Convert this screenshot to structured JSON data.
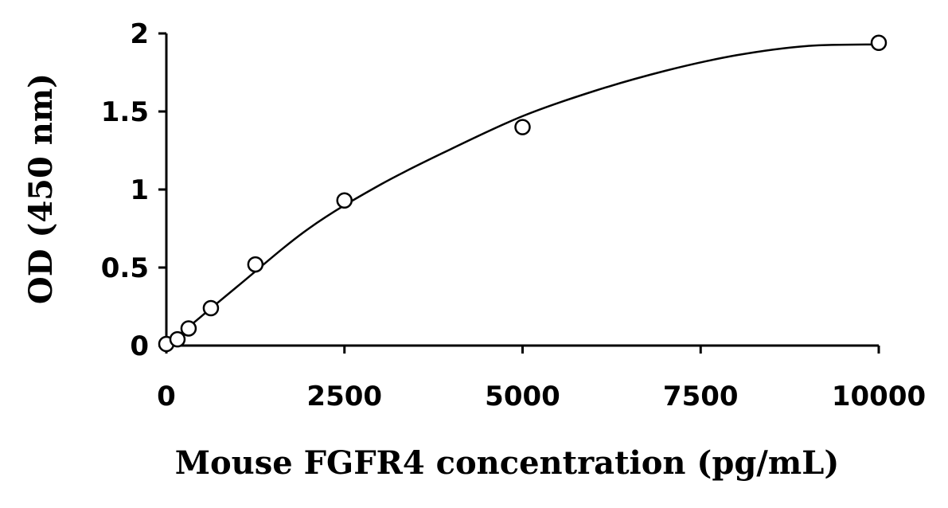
{
  "chart_data": {
    "type": "scatter",
    "title": "",
    "xlabel": "Mouse FGFR4 concentration (pg/mL)",
    "ylabel": "OD (450 nm)",
    "xlim": [
      0,
      10000
    ],
    "ylim": [
      0,
      2
    ],
    "xticks": [
      0,
      2500,
      5000,
      7500,
      10000
    ],
    "yticks": [
      0,
      0.5,
      1,
      1.5,
      2
    ],
    "xtick_labels": [
      "0",
      "2500",
      "5000",
      "7500",
      "10000"
    ],
    "ytick_labels": [
      "0",
      "0.5",
      "1",
      "1.5",
      "2"
    ],
    "grid": false,
    "legend": "none",
    "series": [
      {
        "type": "scatter",
        "marker": "open-circle",
        "x": [
          0,
          156,
          312,
          625,
          1250,
          2500,
          5000,
          10000
        ],
        "y": [
          0.01,
          0.04,
          0.11,
          0.24,
          0.52,
          0.93,
          1.4,
          1.94
        ]
      },
      {
        "type": "line",
        "fit": "curve",
        "x": [
          0,
          1000,
          2000,
          3000,
          4000,
          5000,
          6000,
          7000,
          8000,
          9000,
          10000
        ],
        "y": [
          0.0,
          0.38,
          0.75,
          1.03,
          1.26,
          1.47,
          1.63,
          1.76,
          1.86,
          1.92,
          1.93
        ]
      }
    ],
    "colors": {
      "axis": "#000000",
      "marker_stroke": "#000000",
      "marker_fill": "#ffffff",
      "line": "#000000"
    }
  }
}
